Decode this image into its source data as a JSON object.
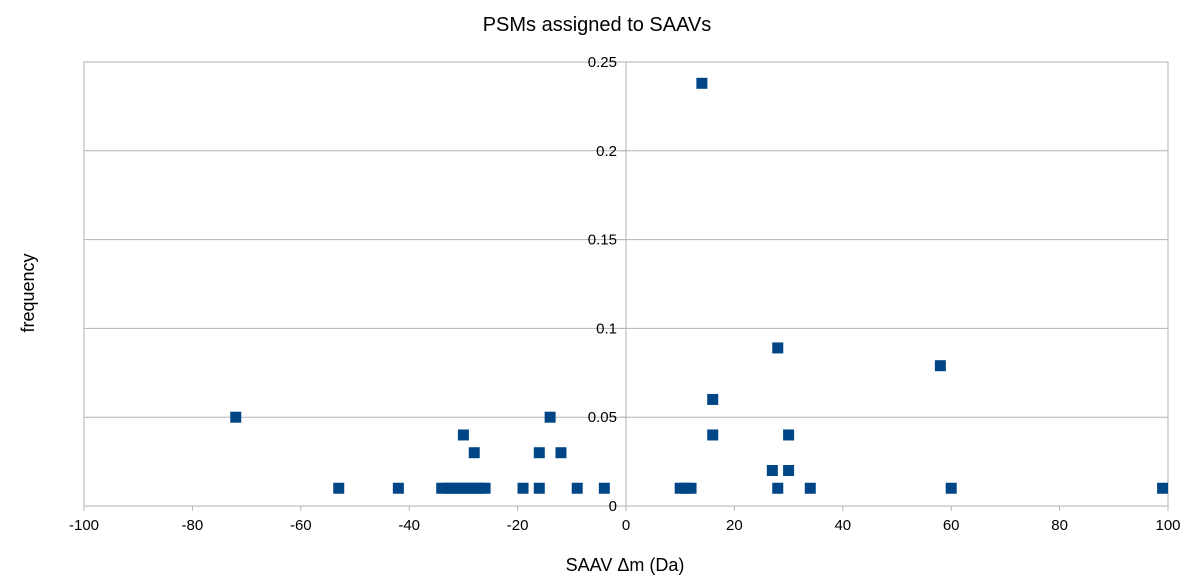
{
  "chart_data": {
    "type": "scatter",
    "title": "PSMs assigned to SAAVs",
    "xlabel": "SAAV Δm (Da)",
    "ylabel": "frequency",
    "xlim": [
      -100,
      100
    ],
    "ylim": [
      0,
      0.25
    ],
    "xticks": [
      -100,
      -80,
      -60,
      -40,
      -20,
      0,
      20,
      40,
      60,
      80,
      100
    ],
    "yticks": [
      0,
      0.05,
      0.1,
      0.15,
      0.2,
      0.25
    ],
    "xtick_labels": [
      "-100",
      "-80",
      "-60",
      "-40",
      "-20",
      "0",
      "20",
      "40",
      "60",
      "80",
      "100"
    ],
    "ytick_labels": [
      "0",
      "0.05",
      "0.1",
      "0.15",
      "0.2",
      "0.25"
    ],
    "grid": true,
    "marker_color": "#004586",
    "points": [
      {
        "x": -72,
        "y": 0.05
      },
      {
        "x": -53,
        "y": 0.01
      },
      {
        "x": -42,
        "y": 0.01
      },
      {
        "x": -34,
        "y": 0.01
      },
      {
        "x": -33,
        "y": 0.01
      },
      {
        "x": -32,
        "y": 0.01
      },
      {
        "x": -31,
        "y": 0.01
      },
      {
        "x": -30,
        "y": 0.04
      },
      {
        "x": -30,
        "y": 0.01
      },
      {
        "x": -29,
        "y": 0.01
      },
      {
        "x": -28,
        "y": 0.03
      },
      {
        "x": -28,
        "y": 0.01
      },
      {
        "x": -27,
        "y": 0.01
      },
      {
        "x": -26,
        "y": 0.01
      },
      {
        "x": -19,
        "y": 0.01
      },
      {
        "x": -16,
        "y": 0.03
      },
      {
        "x": -16,
        "y": 0.01
      },
      {
        "x": -14,
        "y": 0.05
      },
      {
        "x": -12,
        "y": 0.03
      },
      {
        "x": -9,
        "y": 0.01
      },
      {
        "x": -4,
        "y": 0.01
      },
      {
        "x": 10,
        "y": 0.01
      },
      {
        "x": 11,
        "y": 0.01
      },
      {
        "x": 12,
        "y": 0.01
      },
      {
        "x": 14,
        "y": 0.238
      },
      {
        "x": 16,
        "y": 0.06
      },
      {
        "x": 16,
        "y": 0.04
      },
      {
        "x": 27,
        "y": 0.02
      },
      {
        "x": 28,
        "y": 0.089
      },
      {
        "x": 28,
        "y": 0.01
      },
      {
        "x": 30,
        "y": 0.04
      },
      {
        "x": 30,
        "y": 0.02
      },
      {
        "x": 34,
        "y": 0.01
      },
      {
        "x": 58,
        "y": 0.079
      },
      {
        "x": 60,
        "y": 0.01
      },
      {
        "x": 99,
        "y": 0.01
      }
    ]
  }
}
